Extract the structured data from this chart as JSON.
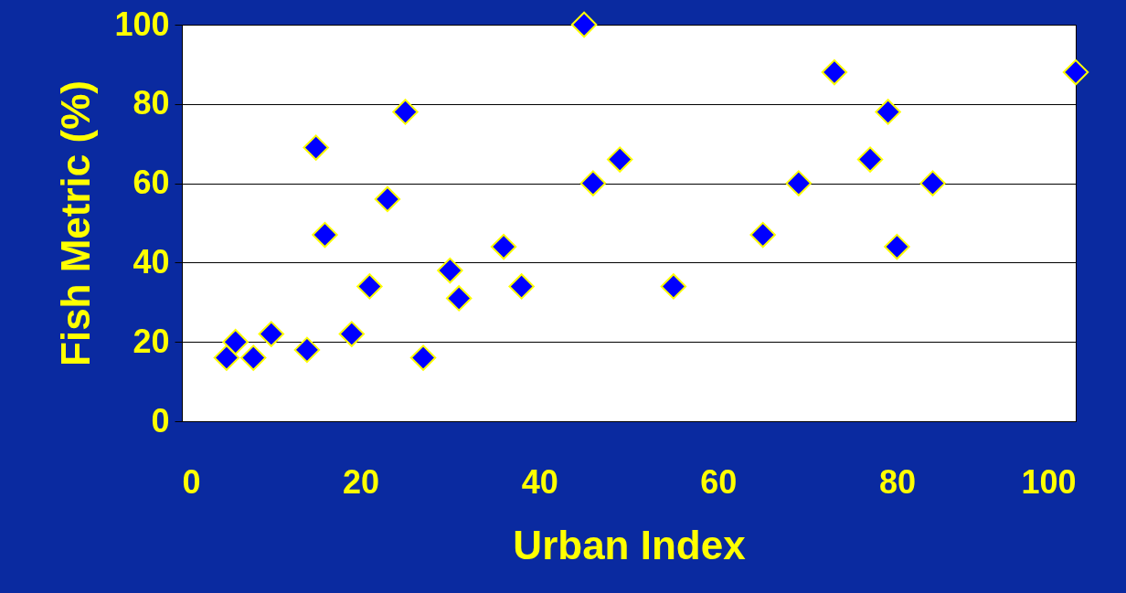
{
  "chart_data": {
    "type": "scatter",
    "xlabel": "Urban Index",
    "ylabel": "Fish Metric (%)",
    "x": [
      5,
      6,
      8,
      10,
      14,
      15,
      16,
      19,
      21,
      23,
      25,
      27,
      30,
      31,
      36,
      38,
      45,
      46,
      49,
      55,
      65,
      69,
      73,
      77,
      79,
      80,
      84,
      100
    ],
    "values": [
      16,
      20,
      16,
      22,
      18,
      69,
      47,
      22,
      34,
      56,
      78,
      16,
      38,
      31,
      44,
      34,
      100,
      60,
      66,
      34,
      47,
      60,
      88,
      66,
      78,
      44,
      60,
      88
    ],
    "color": "#0000ff",
    "marker": "diamond",
    "grid": "y",
    "xlim": [
      0,
      100
    ],
    "ylim": [
      0,
      100
    ],
    "xticks": [
      0,
      20,
      40,
      60,
      80,
      100
    ],
    "yticks": [
      0,
      20,
      40,
      60,
      80,
      100
    ]
  }
}
